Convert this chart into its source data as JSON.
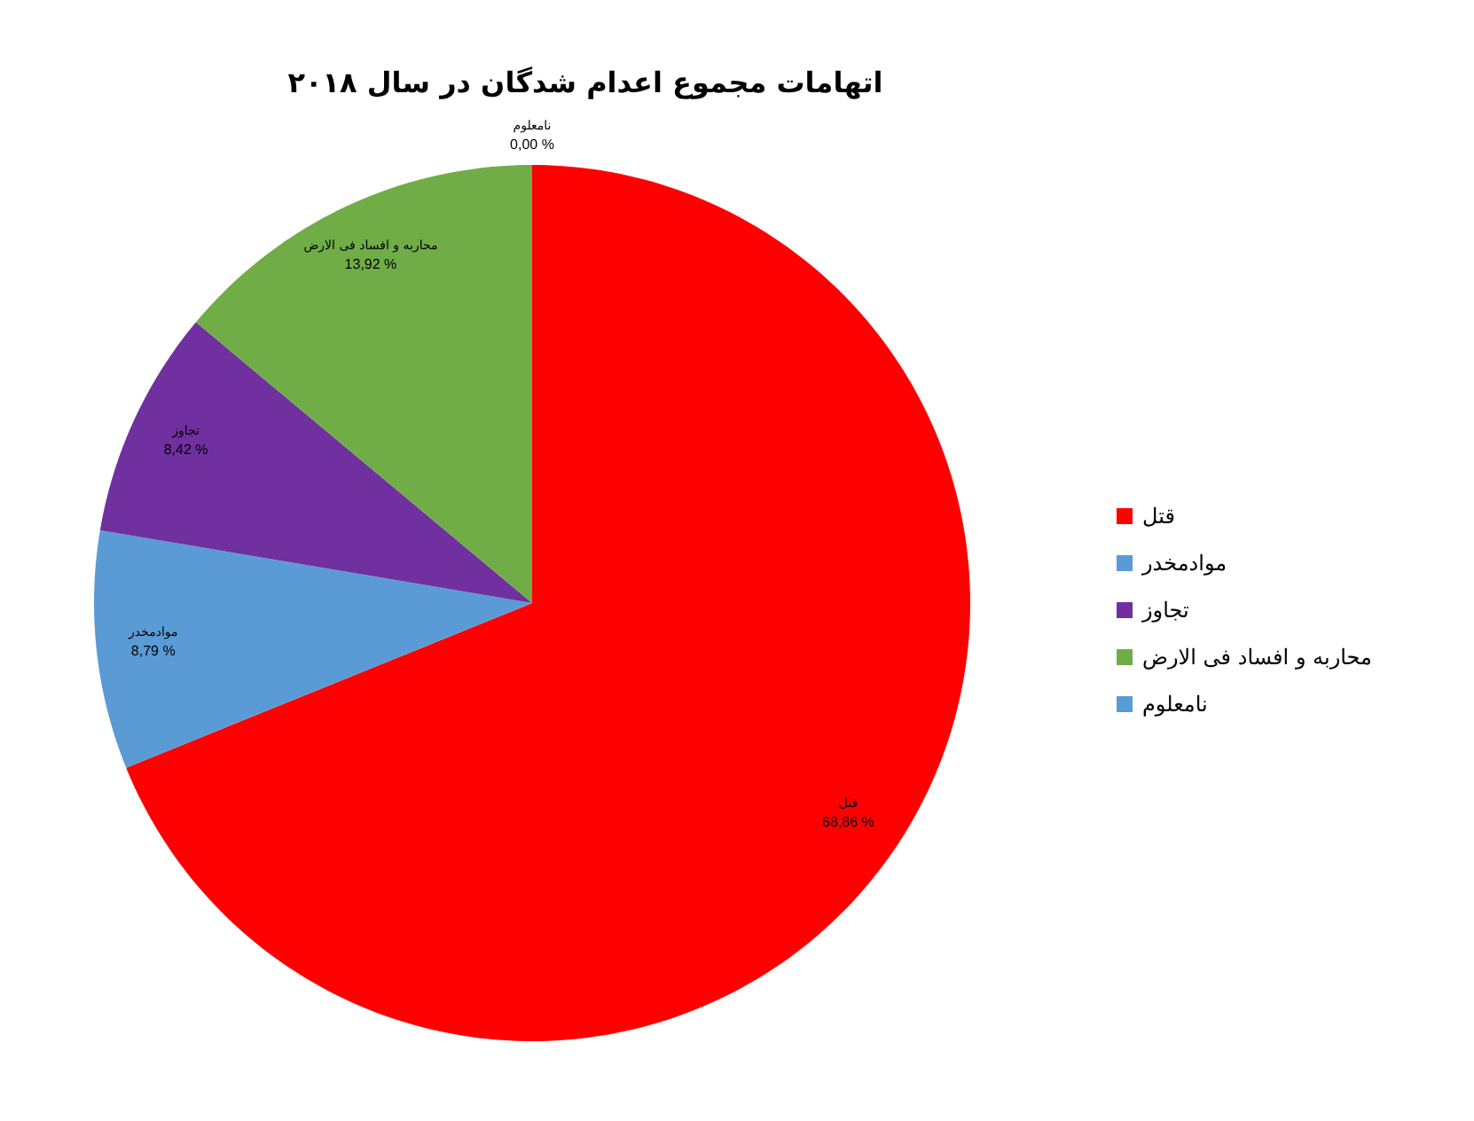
{
  "chart_data": {
    "type": "pie",
    "title": "اتهامات مجموع اعدام شدگان در سال ۲۰۱۸",
    "categories": [
      "قتل",
      "موادمخدر",
      "تجاوز",
      "محاربه و افساد فی الارض",
      "نامعلوم"
    ],
    "values": [
      68.86,
      8.79,
      8.42,
      13.92,
      0.0
    ],
    "value_labels": [
      "68,86 %",
      "8,79 %",
      "8,42 %",
      "13,92 %",
      "0,00 %"
    ],
    "colors": [
      "#ff0000",
      "#5b9bd5",
      "#7030a0",
      "#70ad47",
      "#5b9bd5"
    ],
    "legend": "right"
  }
}
